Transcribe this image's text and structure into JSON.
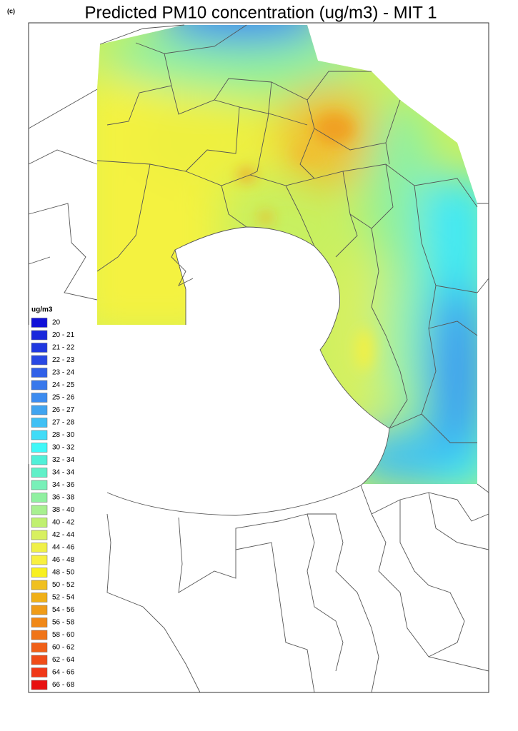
{
  "panel_label": "(c)",
  "title": "Predicted PM10 concentration (ug/m3) - MIT 1",
  "legend": {
    "title": "ug/m3",
    "items": [
      {
        "label": "20",
        "color": "#1010d8"
      },
      {
        "label": "20 - 21",
        "color": "#1a28dc"
      },
      {
        "label": "21 - 22",
        "color": "#2038e0"
      },
      {
        "label": "22 - 23",
        "color": "#2848e4"
      },
      {
        "label": "23 - 24",
        "color": "#3060e8"
      },
      {
        "label": "24 - 25",
        "color": "#3878ec"
      },
      {
        "label": "25 - 26",
        "color": "#3c8cf0"
      },
      {
        "label": "26 - 27",
        "color": "#40a4f0"
      },
      {
        "label": "27 - 28",
        "color": "#40c0f4"
      },
      {
        "label": "28 - 30",
        "color": "#40dcf8"
      },
      {
        "label": "30 - 32",
        "color": "#40f8f8"
      },
      {
        "label": "32 - 34",
        "color": "#50f0d8"
      },
      {
        "label": "34 - 34",
        "color": "#60f0c8"
      },
      {
        "label": "34 - 36",
        "color": "#78f0b8"
      },
      {
        "label": "36 - 38",
        "color": "#90f0a0"
      },
      {
        "label": "38 - 40",
        "color": "#a8f090"
      },
      {
        "label": "40 - 42",
        "color": "#c0f070"
      },
      {
        "label": "42 - 44",
        "color": "#d8f060"
      },
      {
        "label": "44 - 46",
        "color": "#f0f048"
      },
      {
        "label": "46 - 48",
        "color": "#f8f040"
      },
      {
        "label": "48 - 50",
        "color": "#f8f020"
      },
      {
        "label": "50 - 52",
        "color": "#f0c020"
      },
      {
        "label": "52 - 54",
        "color": "#f0b018"
      },
      {
        "label": "54 - 56",
        "color": "#f09c18"
      },
      {
        "label": "56 - 58",
        "color": "#f08818"
      },
      {
        "label": "58 - 60",
        "color": "#f07418"
      },
      {
        "label": "60 - 62",
        "color": "#f06018"
      },
      {
        "label": "62 - 64",
        "color": "#f04c18"
      },
      {
        "label": "64 - 66",
        "color": "#f03818"
      },
      {
        "label": "66 - 68",
        "color": "#e81010"
      }
    ]
  }
}
